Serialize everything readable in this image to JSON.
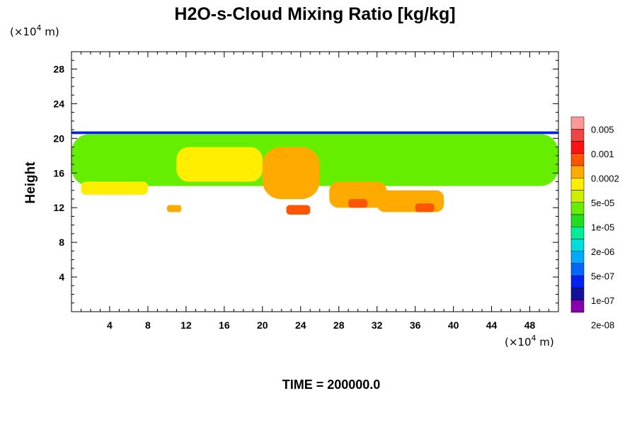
{
  "chart_data": {
    "type": "heatmap",
    "title": "H2O-s-Cloud Mixing Ratio [kg/kg]",
    "ylabel": "Height",
    "x_unit": {
      "prefix": "(×10",
      "exp": "4",
      "suffix": " m)"
    },
    "y_unit": {
      "prefix": "(×10",
      "exp": "4",
      "suffix": " m)"
    },
    "xlim": [
      0,
      51
    ],
    "ylim": [
      0,
      30
    ],
    "x_ticks": [
      "4",
      "8",
      "12",
      "16",
      "20",
      "24",
      "28",
      "32",
      "36",
      "40",
      "44",
      "48"
    ],
    "y_ticks": [
      "4",
      "8",
      "12",
      "16",
      "20",
      "24",
      "28"
    ],
    "footer": "TIME = 200000.0",
    "legend_labels": [
      "0.005",
      "0.001",
      "0.0002",
      "5e-05",
      "1e-05",
      "2e-06",
      "5e-07",
      "1e-07",
      "2e-08"
    ],
    "colormap": [
      "#8800aa",
      "#111199",
      "#0022ee",
      "#0066ff",
      "#00a8ff",
      "#00dddd",
      "#00ee99",
      "#22dd22",
      "#66ee00",
      "#ccee00",
      "#ffee00",
      "#ffaa00",
      "#ff5500",
      "#ff1111",
      "#ee4444",
      "#ff9999"
    ],
    "regions": [
      {
        "name": "cloud-top-edge",
        "level": 2,
        "x": [
          0,
          51
        ],
        "y": [
          20.5,
          20.8
        ]
      },
      {
        "name": "cloud-deck",
        "level": 8,
        "x": [
          0,
          51
        ],
        "y": [
          14.5,
          20.5
        ]
      },
      {
        "name": "moist-patch-a",
        "level": 10,
        "x": [
          1,
          8
        ],
        "y": [
          13.5,
          15
        ]
      },
      {
        "name": "moist-patch-b",
        "level": 10,
        "x": [
          11,
          20
        ],
        "y": [
          15,
          19
        ]
      },
      {
        "name": "moist-patch-c",
        "level": 11,
        "x": [
          20,
          26
        ],
        "y": [
          13,
          19
        ]
      },
      {
        "name": "moist-patch-d",
        "level": 11,
        "x": [
          27,
          33
        ],
        "y": [
          12,
          15
        ]
      },
      {
        "name": "moist-patch-e",
        "level": 12,
        "x": [
          29,
          31
        ],
        "y": [
          12,
          13
        ]
      },
      {
        "name": "moist-patch-f",
        "level": 11,
        "x": [
          32,
          39
        ],
        "y": [
          11.5,
          14
        ]
      },
      {
        "name": "moist-patch-g",
        "level": 12,
        "x": [
          36,
          38
        ],
        "y": [
          11.5,
          12.5
        ]
      },
      {
        "name": "blob-11",
        "level": 11,
        "x": [
          10,
          11.5
        ],
        "y": [
          11.5,
          12.3
        ]
      },
      {
        "name": "blob-23",
        "level": 12,
        "x": [
          22.5,
          25
        ],
        "y": [
          11.2,
          12.3
        ]
      }
    ]
  }
}
